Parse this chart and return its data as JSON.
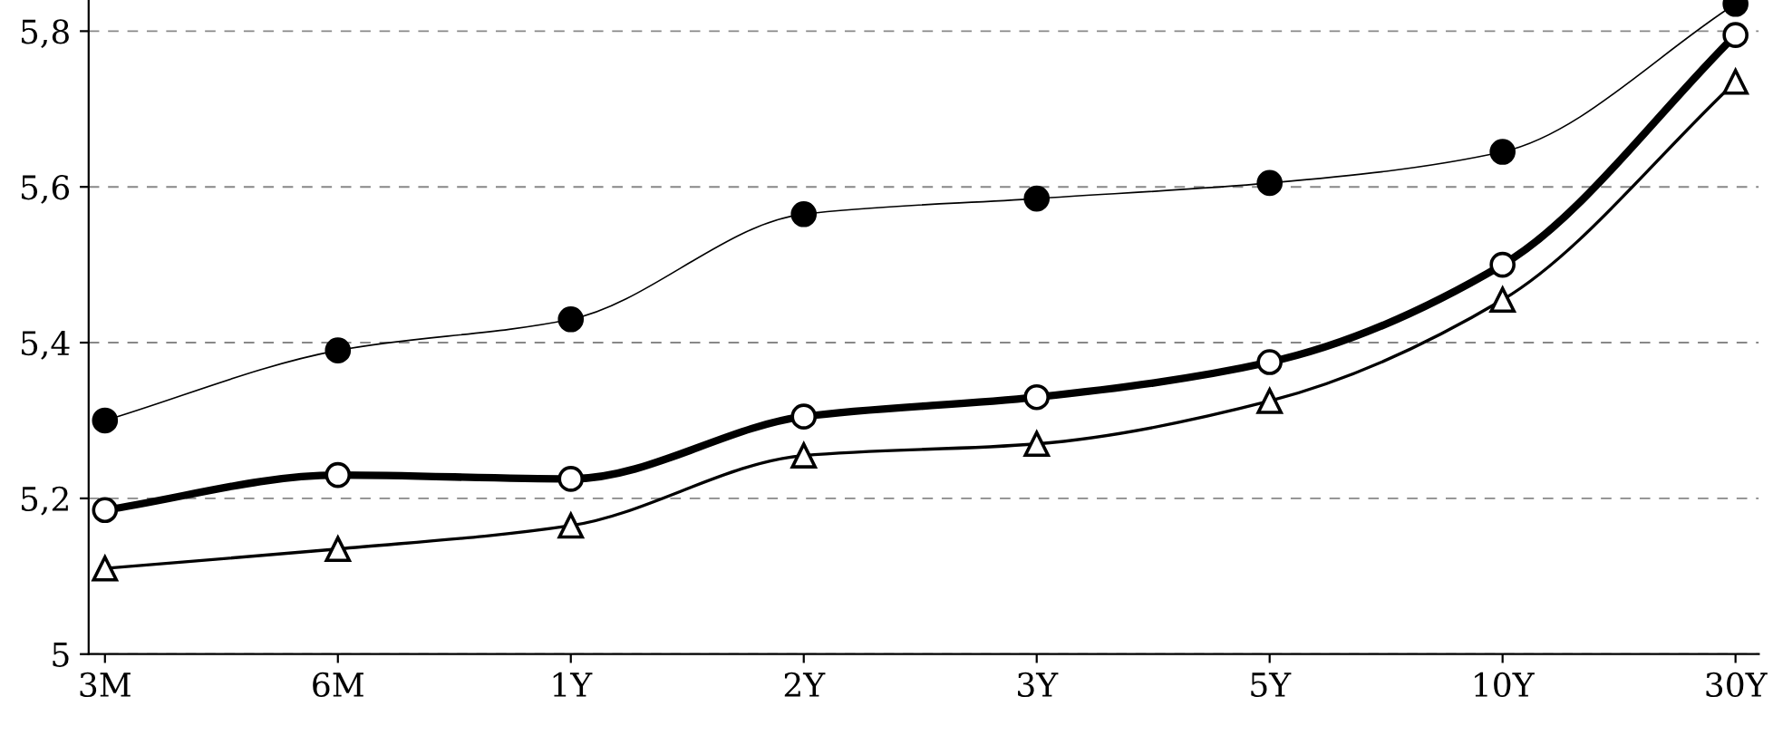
{
  "chart_data": {
    "type": "line",
    "categories": [
      "3M",
      "6M",
      "1Y",
      "2Y",
      "3Y",
      "5Y",
      "10Y",
      "30Y"
    ],
    "series": [
      {
        "color": "#000000",
        "marker": "circle",
        "values": [
          5.3,
          5.39,
          5.43,
          5.565,
          5.585,
          5.605,
          5.645,
          5.835
        ]
      },
      {
        "color": "#000000",
        "marker": "circle",
        "values": [
          5.185,
          5.23,
          5.225,
          5.305,
          5.33,
          5.375,
          5.5,
          5.795
        ]
      },
      {
        "color": "#000000",
        "marker": "triangle",
        "values": [
          5.11,
          5.135,
          5.165,
          5.255,
          5.27,
          5.325,
          5.455,
          5.735
        ]
      }
    ],
    "ylim": [
      5,
      5.84
    ],
    "yticks": [
      5,
      {
        "value": 5.2,
        "label": "5,2"
      },
      {
        "value": 5.4,
        "label": "5,4"
      },
      {
        "value": 5.6,
        "label": "5,6"
      },
      {
        "value": 5.8,
        "label": "5,8"
      }
    ],
    "grid": "y",
    "line_style": "solid"
  }
}
